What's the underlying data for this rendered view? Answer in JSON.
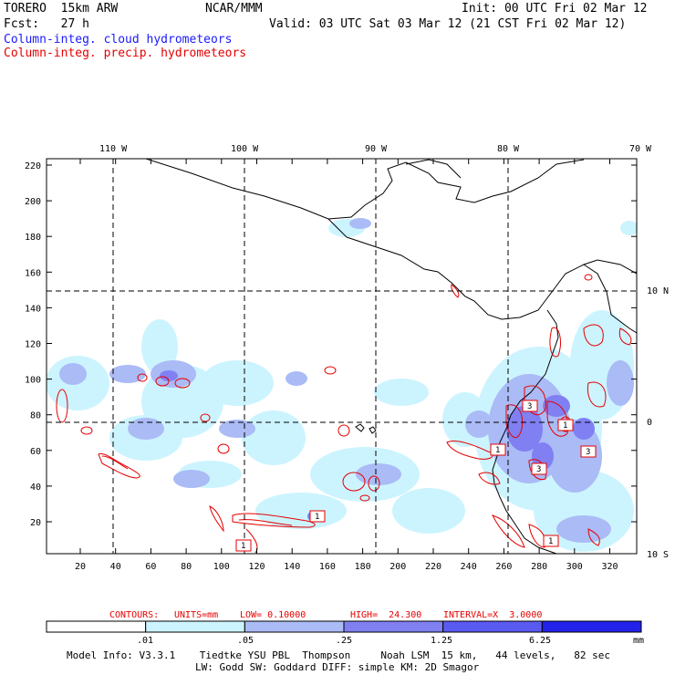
{
  "header": {
    "model": "TORERO  15km ARW",
    "center": "NCAR/MMM",
    "init": "Init: 00 UTC Fri 02 Mar 12",
    "fcst": "Fcst:   27 h",
    "valid": "Valid: 03 UTC Sat 03 Mar 12 (21 CST Fri 02 Mar 12)",
    "field1": "Column-integ. cloud hydrometeors",
    "field2": "Column-integ. precip. hydrometeors"
  },
  "top_lon_labels": [
    "110 W",
    "100 W",
    "90 W",
    "80 W",
    "70 W"
  ],
  "right_lat_labels": [
    "10 N",
    "0",
    "10 S"
  ],
  "y_ticks": [
    "220",
    "200",
    "180",
    "160",
    "140",
    "120",
    "100",
    "80",
    "60",
    "40",
    "20"
  ],
  "x_ticks": [
    "20",
    "40",
    "60",
    "80",
    "100",
    "120",
    "140",
    "160",
    "180",
    "200",
    "220",
    "240",
    "260",
    "280",
    "300",
    "320"
  ],
  "contour_boxes": [
    "1",
    "1",
    "1",
    "3",
    "1",
    "3",
    "1",
    "3"
  ],
  "contours_info": {
    "label": "CONTOURS:",
    "units": "UNITS=mm",
    "low": "LOW= 0.10000",
    "high": "HIGH=  24.300",
    "interval": "INTERVAL=X  3.0000"
  },
  "colorbar": {
    "labels": [
      ".01",
      ".05",
      ".25",
      "1.25",
      "6.25"
    ],
    "unit": "mm",
    "colors": [
      "#ffffff",
      "#ccf4ff",
      "#aabbf6",
      "#8080f2",
      "#5a5af0",
      "#2222ea"
    ]
  },
  "footer": {
    "line1": "Model Info: V3.3.1    Tiedtke YSU PBL  Thompson     Noah LSM  15 km,   44 levels,   82 sec",
    "line2": "LW: Godd SW: Goddard DIFF: simple KM: 2D Smagor"
  }
}
